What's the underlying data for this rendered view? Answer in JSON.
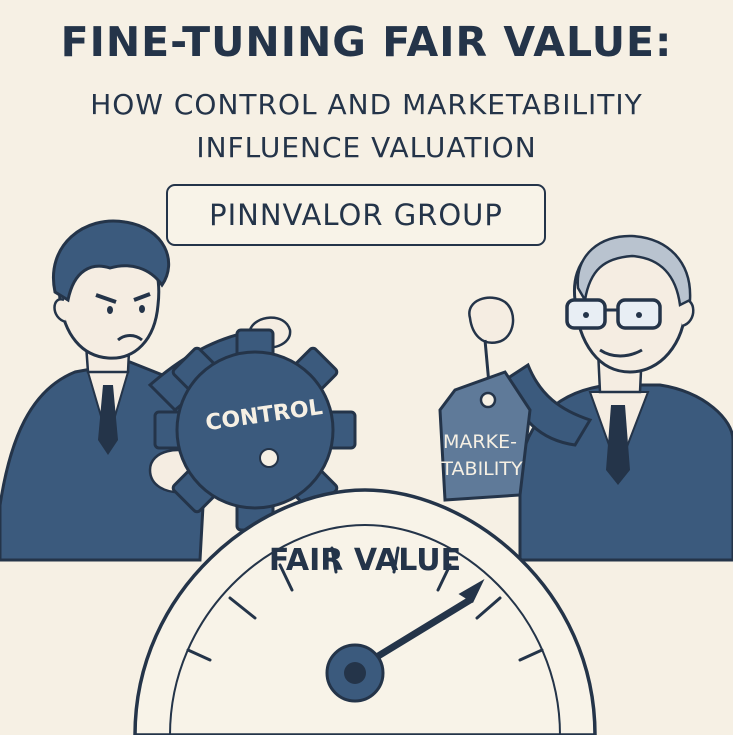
{
  "header": {
    "title": "FINE-TUNING FAIR VALUE:",
    "subtitle_line1": "HOW CONTROL AND MARKETABILITIY",
    "subtitle_line2": "INFLUENCE VALUATION"
  },
  "brand": {
    "name": "PINNVALOR GROUP"
  },
  "gear": {
    "label": "CONTROL"
  },
  "tag": {
    "line1": "MARKE-",
    "line2": "TABILITY"
  },
  "gauge": {
    "label": "FAIR VALUE"
  },
  "colors": {
    "background": "#f6f0e4",
    "ink": "#243449",
    "navy": "#3b5a7d",
    "skin": "#f5ede2"
  }
}
